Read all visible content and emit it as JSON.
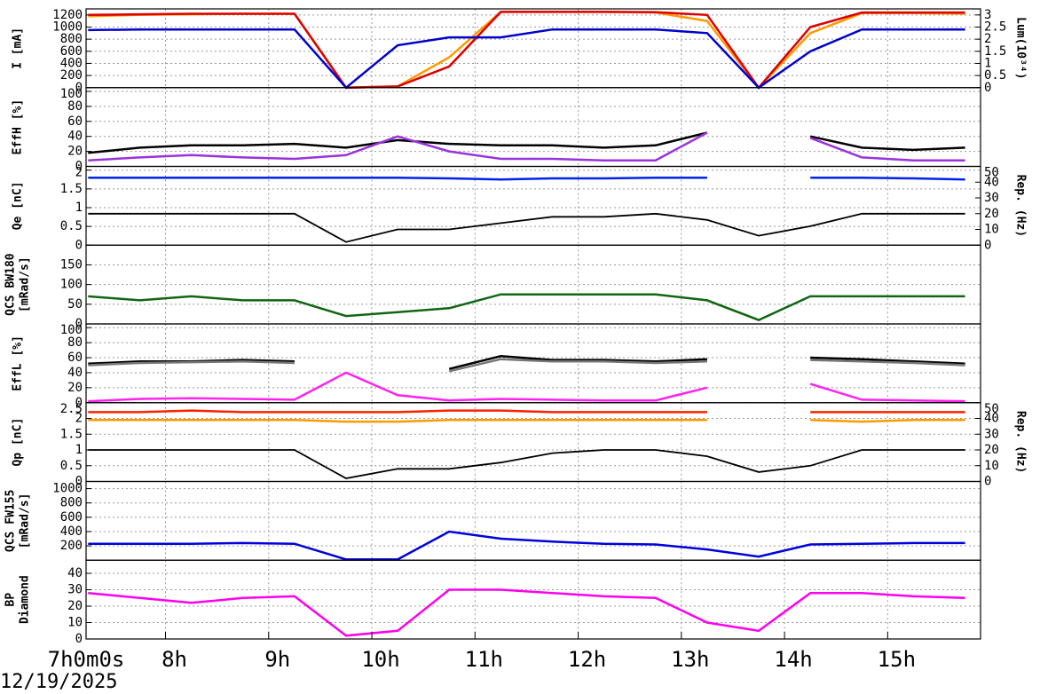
{
  "chart_data": [
    {
      "type": "line",
      "ylabel": [
        "I [mA]"
      ],
      "y2label": [
        "Lum(10³⁴)"
      ],
      "x": [
        7.25,
        7.75,
        8.25,
        8.75,
        9.25,
        9.75,
        10.25,
        10.75,
        11.25,
        11.75,
        12.25,
        12.75,
        13.25,
        13.75,
        14.25,
        14.75,
        15.25,
        15.75
      ],
      "xlim": [
        7.23,
        15.9
      ],
      "xticks": [
        {
          "value": 7.23,
          "label": "7h0m0s"
        },
        {
          "value": 8,
          "label": "8h"
        },
        {
          "value": 9,
          "label": "9h"
        },
        {
          "value": 10,
          "label": "10h"
        },
        {
          "value": 11,
          "label": "11h"
        },
        {
          "value": 12,
          "label": "12h"
        },
        {
          "value": 13,
          "label": "13h"
        },
        {
          "value": 14,
          "label": "14h"
        },
        {
          "value": 15,
          "label": "15h"
        }
      ],
      "ylim": [
        0,
        1300
      ],
      "yticks": [
        0,
        200,
        400,
        600,
        800,
        1000,
        1200
      ],
      "y2lim": [
        0,
        3.25
      ],
      "y2ticks": [
        0,
        0.5,
        1,
        1.5,
        2,
        2.5,
        3
      ],
      "grid": true,
      "series": [
        {
          "color": "#ff9900",
          "values": [
            1180,
            1200,
            1210,
            1220,
            1220,
            0,
            20,
            500,
            1250,
            1250,
            1250,
            1240,
            1100,
            0,
            900,
            1230,
            1230,
            1220
          ]
        },
        {
          "color": "#dd0000",
          "values": [
            1200,
            1210,
            1220,
            1220,
            1220,
            0,
            20,
            350,
            1250,
            1250,
            1250,
            1245,
            1200,
            0,
            1000,
            1240,
            1240,
            1240
          ]
        },
        {
          "color": "#0000cc",
          "values": [
            950,
            960,
            960,
            960,
            960,
            0,
            700,
            830,
            830,
            960,
            960,
            960,
            900,
            0,
            600,
            960,
            960,
            960
          ]
        }
      ]
    },
    {
      "type": "line",
      "ylabel": [
        "EffH [%]"
      ],
      "ylim": [
        0,
        105
      ],
      "yticks": [
        0,
        20,
        40,
        60,
        80,
        100
      ],
      "grid": true,
      "series": [
        {
          "color": "#000000",
          "values": [
            18,
            25,
            28,
            28,
            30,
            25,
            35,
            30,
            28,
            28,
            25,
            28,
            45,
            null,
            40,
            25,
            22,
            25
          ]
        },
        {
          "color": "#9933dd",
          "values": [
            8,
            12,
            15,
            12,
            10,
            15,
            40,
            20,
            10,
            10,
            8,
            8,
            45,
            null,
            38,
            12,
            8,
            8
          ]
        }
      ]
    },
    {
      "type": "line",
      "ylabel": [
        "Qe [nC]"
      ],
      "y2label": [
        "Rep. (Hz)"
      ],
      "ylim": [
        0,
        2.1
      ],
      "yticks": [
        0,
        0.5,
        1,
        1.5,
        2
      ],
      "y2lim": [
        0,
        50
      ],
      "y2ticks": [
        0,
        10,
        20,
        30,
        40,
        50
      ],
      "grid": true,
      "series": [
        {
          "color": "#0022ee",
          "values": [
            1.8,
            1.8,
            1.8,
            1.8,
            1.8,
            1.8,
            1.8,
            1.78,
            1.75,
            1.78,
            1.78,
            1.8,
            1.8,
            null,
            1.8,
            1.8,
            1.78,
            1.75
          ]
        },
        {
          "color": "#000000",
          "axis": "y2",
          "values": [
            20,
            20,
            20,
            20,
            20,
            2,
            10,
            10,
            14,
            18,
            18,
            20,
            16,
            6,
            12,
            20,
            20,
            20
          ]
        }
      ]
    },
    {
      "type": "line",
      "ylabel": [
        "QCS BW180",
        "[mRad/s]"
      ],
      "ylim": [
        0,
        200
      ],
      "yticks": [
        0,
        50,
        100,
        150
      ],
      "grid": true,
      "series": [
        {
          "color": "#116611",
          "values": [
            70,
            60,
            70,
            60,
            60,
            20,
            30,
            40,
            75,
            75,
            75,
            75,
            60,
            10,
            70,
            70,
            70,
            70
          ]
        }
      ]
    },
    {
      "type": "line",
      "ylabel": [
        "EffL [%]"
      ],
      "ylim": [
        0,
        105
      ],
      "yticks": [
        0,
        20,
        40,
        60,
        80,
        100
      ],
      "grid": true,
      "series": [
        {
          "color": "#000000",
          "values": [
            52,
            55,
            55,
            57,
            55,
            null,
            null,
            45,
            62,
            57,
            57,
            55,
            58,
            null,
            60,
            58,
            55,
            52
          ]
        },
        {
          "color": "#777777",
          "values": [
            50,
            53,
            54,
            55,
            53,
            null,
            null,
            42,
            58,
            55,
            55,
            53,
            55,
            null,
            57,
            55,
            53,
            50
          ]
        },
        {
          "color": "#ff22ee",
          "values": [
            2,
            5,
            6,
            5,
            4,
            40,
            10,
            3,
            5,
            4,
            3,
            3,
            20,
            null,
            25,
            4,
            3,
            2
          ]
        }
      ]
    },
    {
      "type": "line",
      "ylabel": [
        "Qp [nC]"
      ],
      "y2label": [
        "Rep. (Hz)"
      ],
      "ylim": [
        0,
        2.5
      ],
      "yticks": [
        0,
        0.5,
        1,
        1.5,
        2,
        2.5
      ],
      "y2lim": [
        0,
        50
      ],
      "y2ticks": [
        0,
        10,
        20,
        30,
        40,
        50
      ],
      "grid": true,
      "series": [
        {
          "color": "#ff2200",
          "values": [
            2.2,
            2.2,
            2.25,
            2.2,
            2.2,
            2.2,
            2.2,
            2.25,
            2.25,
            2.2,
            2.2,
            2.2,
            2.2,
            null,
            2.2,
            2.2,
            2.2,
            2.2
          ]
        },
        {
          "color": "#ff9900",
          "values": [
            1.95,
            1.95,
            1.95,
            1.95,
            1.95,
            1.9,
            1.9,
            1.95,
            1.95,
            1.95,
            1.95,
            1.95,
            1.95,
            null,
            1.95,
            1.9,
            1.95,
            1.95
          ]
        },
        {
          "color": "#000000",
          "axis": "y2",
          "values": [
            20,
            20,
            20,
            20,
            20,
            2,
            8,
            8,
            12,
            18,
            20,
            20,
            16,
            6,
            10,
            20,
            20,
            20
          ]
        }
      ]
    },
    {
      "type": "line",
      "ylabel": [
        "QCS FW155",
        "[mRad/s]"
      ],
      "ylim": [
        0,
        1100
      ],
      "yticks": [
        200,
        400,
        600,
        800,
        1000
      ],
      "grid": true,
      "series": [
        {
          "color": "#0000dd",
          "values": [
            230,
            230,
            230,
            240,
            230,
            10,
            10,
            400,
            300,
            260,
            230,
            220,
            150,
            50,
            220,
            230,
            240,
            240
          ]
        }
      ]
    },
    {
      "type": "line",
      "ylabel": [
        "BP",
        "Diamond"
      ],
      "ylim": [
        0,
        48
      ],
      "yticks": [
        0,
        10,
        20,
        30,
        40
      ],
      "grid": true,
      "date": "12/19/2025",
      "series": [
        {
          "color": "#ff00ee",
          "values": [
            28,
            25,
            22,
            25,
            26,
            2,
            5,
            30,
            30,
            28,
            26,
            25,
            10,
            5,
            28,
            28,
            26,
            25
          ]
        }
      ]
    }
  ]
}
